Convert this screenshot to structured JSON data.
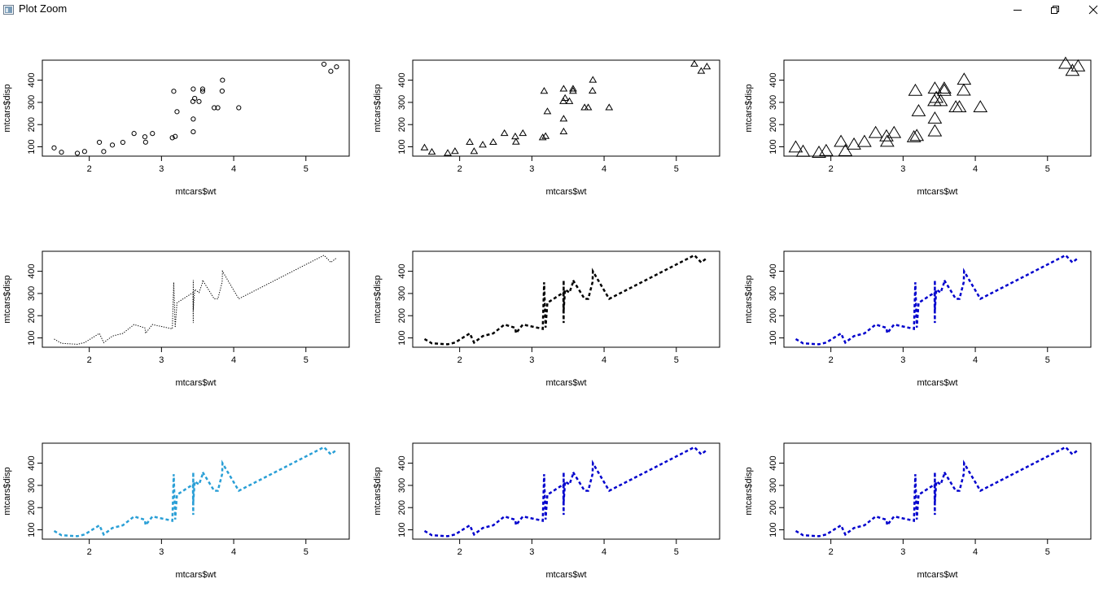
{
  "window": {
    "title": "Plot Zoom",
    "app_icon": "plot-window-icon",
    "controls": [
      "minimize-icon",
      "restore-icon",
      "close-icon"
    ]
  },
  "colors": {
    "black": "#000000",
    "cyan_blue": "#2a9fd6",
    "blue": "#0000cd"
  },
  "chart_data": [
    {
      "type": "scatter",
      "symbol": "circle",
      "symbol_scale": 1,
      "color": "#000000",
      "xlabel": "mtcars$wt",
      "ylabel": "mtcars$disp",
      "xticks": [
        2,
        3,
        4,
        5
      ],
      "yticks": [
        100,
        200,
        300,
        400
      ],
      "xlim": [
        1.35,
        5.6
      ],
      "ylim": [
        58,
        490
      ]
    },
    {
      "type": "scatter",
      "symbol": "triangle",
      "symbol_scale": 1,
      "color": "#000000",
      "xlabel": "mtcars$wt",
      "ylabel": "mtcars$disp",
      "xticks": [
        2,
        3,
        4,
        5
      ],
      "yticks": [
        100,
        200,
        300,
        400
      ],
      "xlim": [
        1.35,
        5.6
      ],
      "ylim": [
        58,
        490
      ]
    },
    {
      "type": "scatter",
      "symbol": "triangle",
      "symbol_scale": 2,
      "color": "#000000",
      "xlabel": "mtcars$wt",
      "ylabel": "mtcars$disp",
      "xticks": [
        2,
        3,
        4,
        5
      ],
      "yticks": [
        100,
        200,
        300,
        400
      ],
      "xlim": [
        1.35,
        5.6
      ],
      "ylim": [
        58,
        490
      ]
    },
    {
      "type": "line",
      "line_style": "dotted",
      "line_width": 1,
      "color": "#000000",
      "xlabel": "mtcars$wt",
      "ylabel": "mtcars$disp",
      "xticks": [
        2,
        3,
        4,
        5
      ],
      "yticks": [
        100,
        200,
        300,
        400
      ],
      "xlim": [
        1.35,
        5.6
      ],
      "ylim": [
        58,
        490
      ]
    },
    {
      "type": "line",
      "line_style": "dashed",
      "line_width": 2.5,
      "color": "#000000",
      "xlabel": "mtcars$wt",
      "ylabel": "mtcars$disp",
      "xticks": [
        2,
        3,
        4,
        5
      ],
      "yticks": [
        100,
        200,
        300,
        400
      ],
      "xlim": [
        1.35,
        5.6
      ],
      "ylim": [
        58,
        490
      ]
    },
    {
      "type": "line",
      "line_style": "dashed",
      "line_width": 2.5,
      "color": "#0000cd",
      "xlabel": "mtcars$wt",
      "ylabel": "mtcars$disp",
      "xticks": [
        2,
        3,
        4,
        5
      ],
      "yticks": [
        100,
        200,
        300,
        400
      ],
      "xlim": [
        1.35,
        5.6
      ],
      "ylim": [
        58,
        490
      ]
    },
    {
      "type": "line",
      "line_style": "dashed",
      "line_width": 2.5,
      "color": "#2a9fd6",
      "xlabel": "mtcars$wt",
      "ylabel": "mtcars$disp",
      "xticks": [
        2,
        3,
        4,
        5
      ],
      "yticks": [
        100,
        200,
        300,
        400
      ],
      "xlim": [
        1.35,
        5.6
      ],
      "ylim": [
        58,
        490
      ]
    },
    {
      "type": "line",
      "line_style": "dashed",
      "line_width": 2.5,
      "color": "#0000cd",
      "xlabel": "mtcars$wt",
      "ylabel": "mtcars$disp",
      "xticks": [
        2,
        3,
        4,
        5
      ],
      "yticks": [
        100,
        200,
        300,
        400
      ],
      "xlim": [
        1.35,
        5.6
      ],
      "ylim": [
        58,
        490
      ]
    },
    {
      "type": "line",
      "line_style": "dashed",
      "line_width": 2.5,
      "color": "#0000cd",
      "xlabel": "mtcars$wt",
      "ylabel": "mtcars$disp",
      "xticks": [
        2,
        3,
        4,
        5
      ],
      "yticks": [
        100,
        200,
        300,
        400
      ],
      "xlim": [
        1.35,
        5.6
      ],
      "ylim": [
        58,
        490
      ]
    }
  ],
  "series": {
    "wt": [
      1.513,
      1.615,
      1.835,
      1.935,
      2.14,
      2.2,
      2.32,
      2.465,
      2.62,
      2.77,
      2.78,
      2.875,
      3.15,
      3.17,
      3.19,
      3.215,
      3.435,
      3.44,
      3.44,
      3.44,
      3.46,
      3.52,
      3.57,
      3.57,
      3.73,
      3.78,
      3.84,
      3.845,
      4.07,
      5.25,
      5.345,
      5.424
    ],
    "disp": [
      95.1,
      75.7,
      71.1,
      79,
      120.3,
      78.7,
      108,
      120.1,
      160,
      145,
      121,
      160,
      140.8,
      350,
      146.7,
      258,
      304,
      167.6,
      360,
      225,
      318,
      304,
      350,
      360,
      275.8,
      275.8,
      351,
      400,
      275.8,
      472,
      440,
      460
    ]
  }
}
